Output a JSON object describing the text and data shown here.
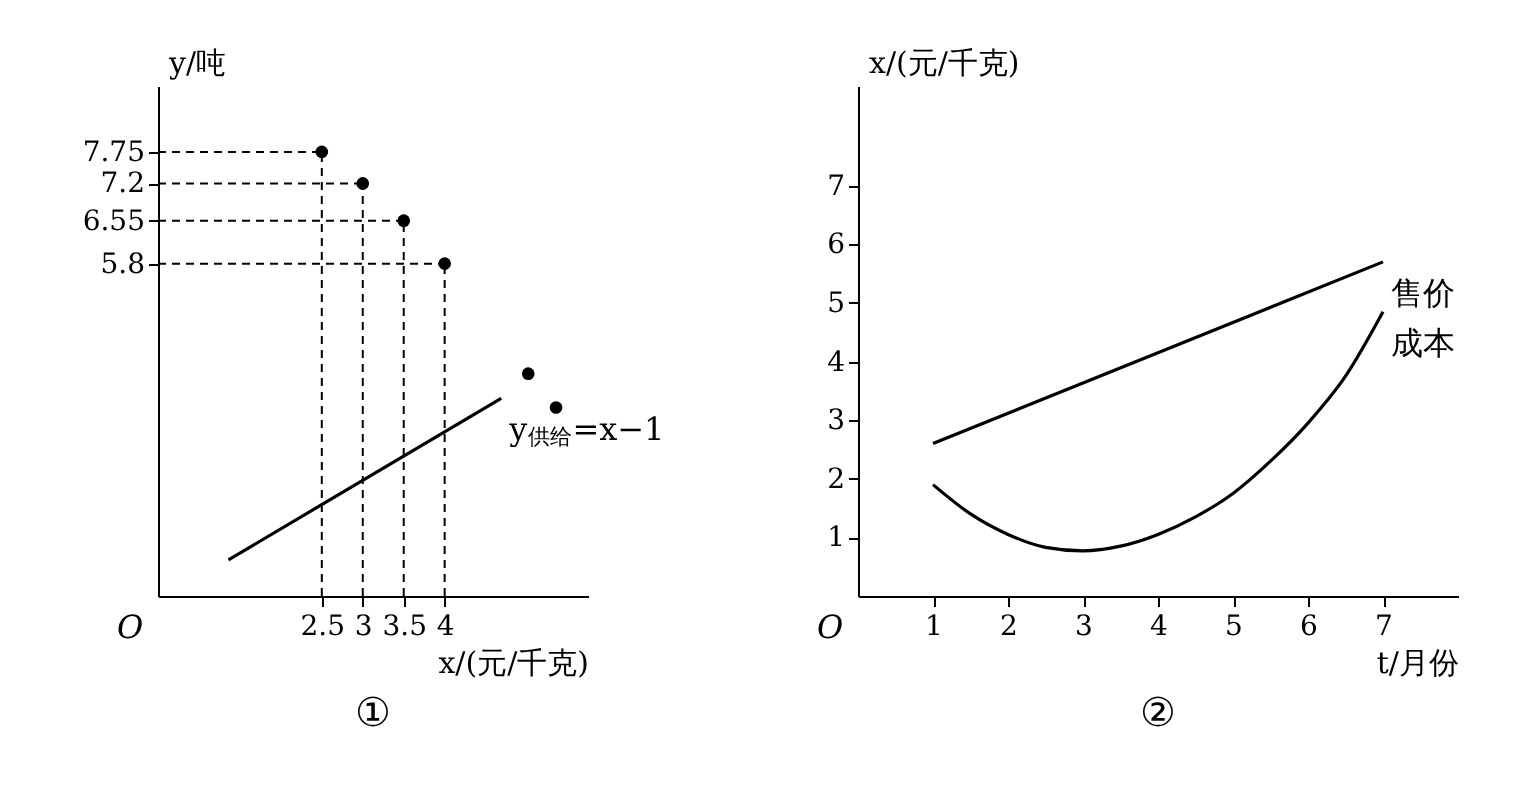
{
  "chart_data": [
    {
      "type": "scatter",
      "title": "①",
      "xlabel": "x/(元/千克)",
      "ylabel": "y/吨",
      "xlim": [
        0.5,
        5.75
      ],
      "ylim": [
        0,
        8.9
      ],
      "xticks": [
        2.5,
        3,
        3.5,
        4
      ],
      "yticks": [
        5.8,
        6.55,
        7.2,
        7.75
      ],
      "series": [
        {
          "color": "#000000",
          "marker": "circle",
          "x": [
            2.5,
            3,
            3.5,
            4
          ],
          "values": [
            7.75,
            7.2,
            6.55,
            5.8
          ]
        },
        {
          "color": "#000000",
          "marker": "circle",
          "x": [
            5.02,
            5.36
          ],
          "values": [
            3.88,
            3.29
          ]
        },
        {
          "type": "line",
          "name": "y$_{供给}$=x−1",
          "color": "#000000",
          "x": [
            1.36,
            4.69
          ],
          "values": [
            0.63,
            3.45
          ]
        }
      ],
      "ref_lines": [
        {
          "axis": "x",
          "value": 2.5,
          "line_style": "dashed"
        },
        {
          "axis": "x",
          "value": 3,
          "line_style": "dashed"
        },
        {
          "axis": "x",
          "value": 3.5,
          "line_style": "dashed"
        },
        {
          "axis": "x",
          "value": 4,
          "line_style": "dashed"
        },
        {
          "axis": "y",
          "value": 7.75,
          "line_style": "dashed"
        },
        {
          "axis": "y",
          "value": 7.2,
          "line_style": "dashed"
        },
        {
          "axis": "y",
          "value": 6.55,
          "line_style": "dashed"
        },
        {
          "axis": "y",
          "value": 5.8,
          "line_style": "dashed"
        }
      ],
      "annotations": [
        "O"
      ]
    },
    {
      "type": "line",
      "title": "②",
      "xlabel": "t/月份",
      "ylabel": "x/(元/千克)",
      "xlim": [
        0,
        8
      ],
      "ylim": [
        0,
        8.7
      ],
      "xticks": [
        1,
        2,
        3,
        4,
        5,
        6,
        7
      ],
      "yticks": [
        1,
        2,
        3,
        4,
        5,
        6,
        7
      ],
      "series": [
        {
          "name": "售价",
          "color": "#000000",
          "x": [
            1,
            7
          ],
          "values": [
            2.6,
            5.7
          ]
        },
        {
          "name": "成本",
          "color": "#000000",
          "x": [
            1,
            1.5,
            2,
            2.5,
            3,
            3.5,
            4,
            4.5,
            5,
            5.5,
            6,
            6.5,
            7
          ],
          "values": [
            1.9,
            1.4,
            1.05,
            0.83,
            0.77,
            0.85,
            1.05,
            1.35,
            1.75,
            2.3,
            2.95,
            3.75,
            4.85
          ]
        }
      ],
      "annotations": [
        "O"
      ]
    }
  ]
}
